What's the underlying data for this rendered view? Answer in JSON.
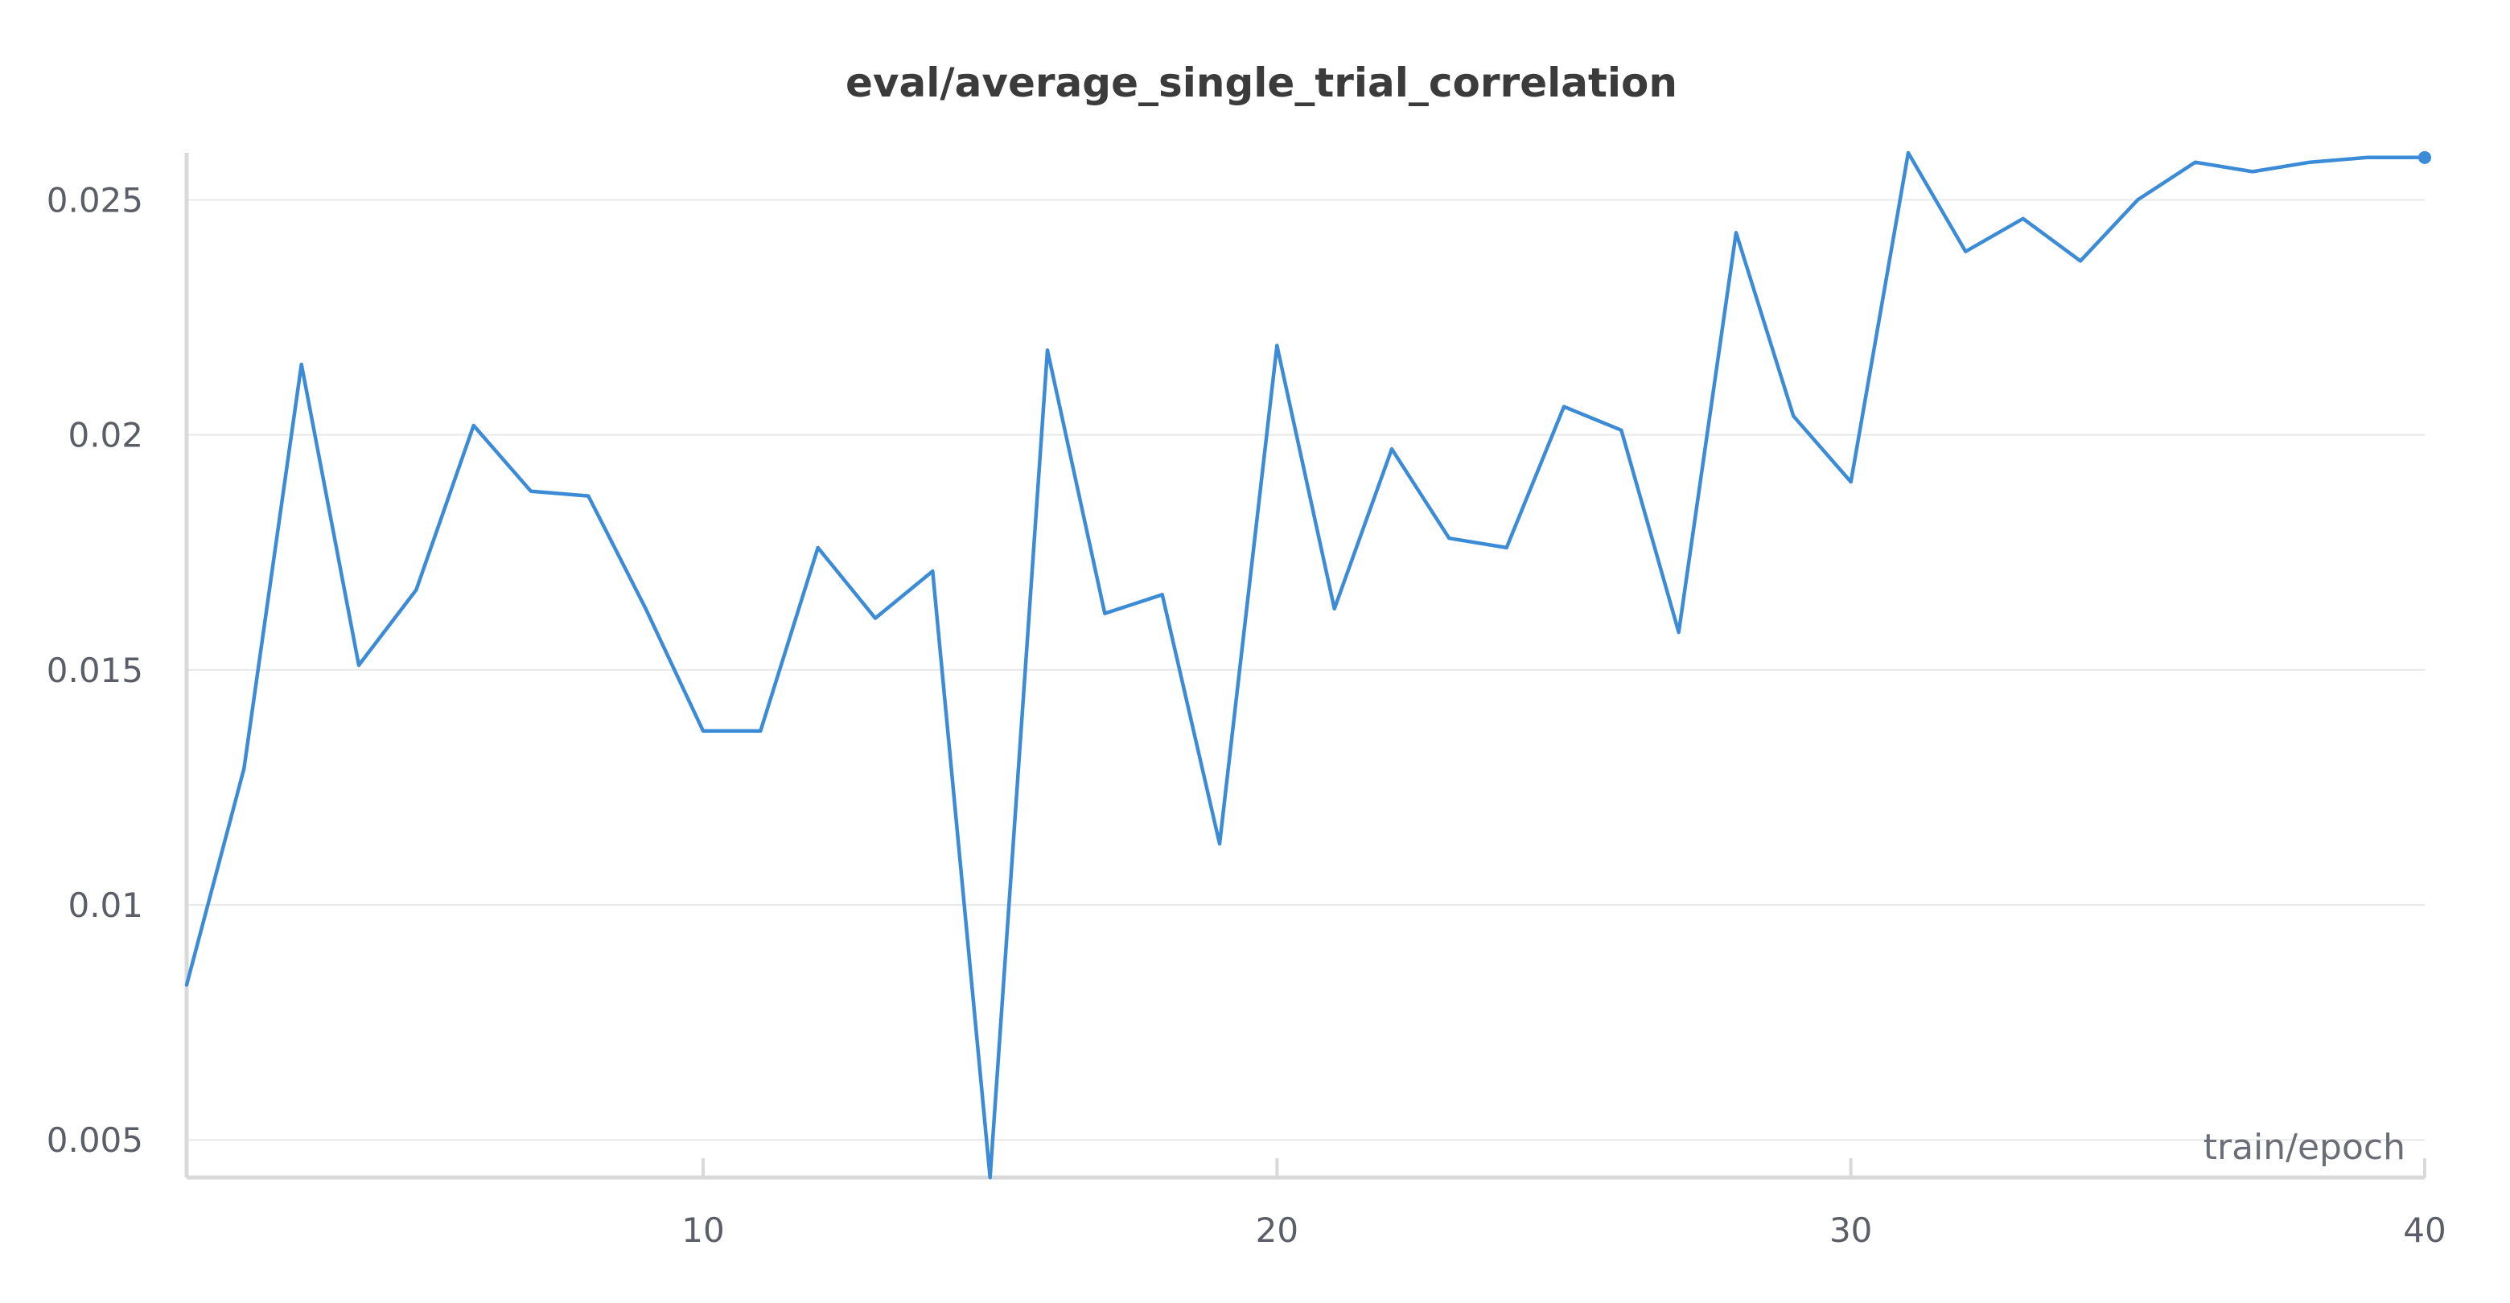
{
  "chart_data": {
    "type": "line",
    "title": "eval/average_single_trial_correlation",
    "xlabel": "train/epoch",
    "ylabel": "",
    "xlim": [
      1,
      40
    ],
    "ylim": [
      0.0042,
      0.026
    ],
    "x_ticks": [
      10,
      20,
      30,
      40
    ],
    "y_ticks": [
      0.005,
      0.01,
      0.015,
      0.02,
      0.025
    ],
    "x_tick_labels": [
      "10",
      "20",
      "30",
      "40"
    ],
    "y_tick_labels": [
      "0.005",
      "0.01",
      "0.015",
      "0.02",
      "0.025"
    ],
    "grid": "horizontal",
    "legend": "none",
    "colors": {
      "line": "#3b8bd6",
      "grid": "#e8e8e8",
      "axis": "#d9d9d9",
      "text": "#5b5e66",
      "title": "#3b3b3b"
    },
    "series": [
      {
        "x": [
          1,
          2,
          3,
          4,
          5,
          6,
          7,
          8,
          9,
          10,
          11,
          12,
          13,
          14,
          15,
          16,
          17,
          18,
          19,
          20,
          21,
          22,
          23,
          24,
          25,
          26,
          27,
          28,
          29,
          30,
          31,
          32,
          33,
          34,
          35,
          36,
          37,
          38,
          39,
          40
        ],
        "values": [
          0.0083,
          0.0129,
          0.0215,
          0.0151,
          0.0167,
          0.0202,
          0.0188,
          0.0187,
          0.0163,
          0.0137,
          0.0137,
          0.0176,
          0.0161,
          0.0171,
          0.0042,
          0.0218,
          0.0162,
          0.0166,
          0.0113,
          0.0219,
          0.0163,
          0.0197,
          0.0178,
          0.0176,
          0.0206,
          0.0201,
          0.0158,
          0.0243,
          0.0204,
          0.019,
          0.026,
          0.0239,
          0.0246,
          0.0237,
          0.025,
          0.0258,
          0.0256,
          0.0258,
          0.0259,
          0.0259
        ]
      }
    ]
  }
}
